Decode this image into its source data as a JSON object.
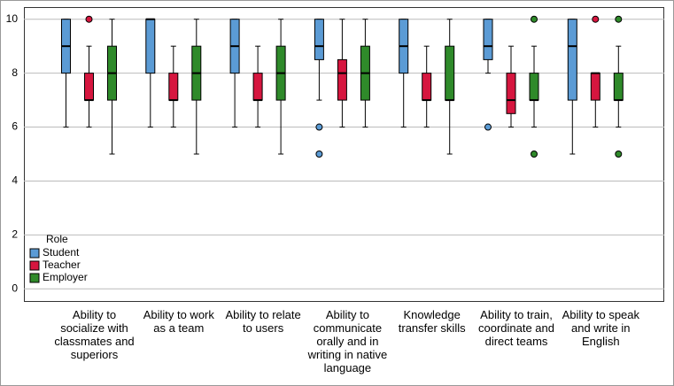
{
  "chart_data": {
    "type": "boxplot",
    "categories": [
      "Ability to socialize with classmates and superiors",
      "Ability to work as a team",
      "Ability to relate to users",
      "Ability to communicate orally and in writing in native language",
      "Knowledge transfer skills",
      "Ability to train, coordinate and direct teams",
      "Ability to speak and write in English"
    ],
    "ylim": [
      -0.45,
      10.45
    ],
    "yticks": [
      0,
      2,
      4,
      6,
      8,
      10
    ],
    "grid": true,
    "legend": {
      "title": "Role",
      "position": "lower left"
    },
    "series": [
      {
        "name": "Student",
        "color": "#5b9bd5",
        "boxes": [
          {
            "whislo": 6,
            "q1": 8,
            "med": 9,
            "q3": 10,
            "whishi": 10,
            "fliers": []
          },
          {
            "whislo": 6,
            "q1": 8,
            "med": 10,
            "q3": 10,
            "whishi": 10,
            "fliers": []
          },
          {
            "whislo": 6,
            "q1": 8,
            "med": 9,
            "q3": 10,
            "whishi": 10,
            "fliers": []
          },
          {
            "whislo": 7,
            "q1": 8.5,
            "med": 9,
            "q3": 10,
            "whishi": 10,
            "fliers": [
              6,
              5
            ]
          },
          {
            "whislo": 6,
            "q1": 8,
            "med": 9,
            "q3": 10,
            "whishi": 10,
            "fliers": []
          },
          {
            "whislo": 8,
            "q1": 8.5,
            "med": 9,
            "q3": 10,
            "whishi": 10,
            "fliers": [
              6
            ]
          },
          {
            "whislo": 5,
            "q1": 7,
            "med": 9,
            "q3": 10,
            "whishi": 10,
            "fliers": []
          }
        ]
      },
      {
        "name": "Teacher",
        "color": "#d6163f",
        "boxes": [
          {
            "whislo": 6,
            "q1": 7,
            "med": 7,
            "q3": 8,
            "whishi": 9,
            "fliers": [
              10
            ]
          },
          {
            "whislo": 6,
            "q1": 7,
            "med": 7,
            "q3": 8,
            "whishi": 9,
            "fliers": []
          },
          {
            "whislo": 6,
            "q1": 7,
            "med": 7,
            "q3": 8,
            "whishi": 9,
            "fliers": []
          },
          {
            "whislo": 6,
            "q1": 7,
            "med": 8,
            "q3": 8.5,
            "whishi": 10,
            "fliers": []
          },
          {
            "whislo": 6,
            "q1": 7,
            "med": 7,
            "q3": 8,
            "whishi": 9,
            "fliers": []
          },
          {
            "whislo": 6,
            "q1": 6.5,
            "med": 7,
            "q3": 8,
            "whishi": 9,
            "fliers": []
          },
          {
            "whislo": 6,
            "q1": 7,
            "med": 8,
            "q3": 8,
            "whishi": 8,
            "fliers": [
              10
            ]
          }
        ]
      },
      {
        "name": "Employer",
        "color": "#2f8a2a",
        "boxes": [
          {
            "whislo": 5,
            "q1": 7,
            "med": 8,
            "q3": 9,
            "whishi": 10,
            "fliers": []
          },
          {
            "whislo": 5,
            "q1": 7,
            "med": 8,
            "q3": 9,
            "whishi": 10,
            "fliers": []
          },
          {
            "whislo": 5,
            "q1": 7,
            "med": 8,
            "q3": 9,
            "whishi": 10,
            "fliers": []
          },
          {
            "whislo": 6,
            "q1": 7,
            "med": 8,
            "q3": 9,
            "whishi": 10,
            "fliers": []
          },
          {
            "whislo": 5,
            "q1": 7,
            "med": 7,
            "q3": 9,
            "whishi": 10,
            "fliers": []
          },
          {
            "whislo": 6,
            "q1": 7,
            "med": 7,
            "q3": 8,
            "whishi": 9,
            "fliers": [
              10,
              5
            ]
          },
          {
            "whislo": 6,
            "q1": 7,
            "med": 7,
            "q3": 8,
            "whishi": 9,
            "fliers": [
              10,
              5
            ]
          }
        ]
      }
    ]
  }
}
